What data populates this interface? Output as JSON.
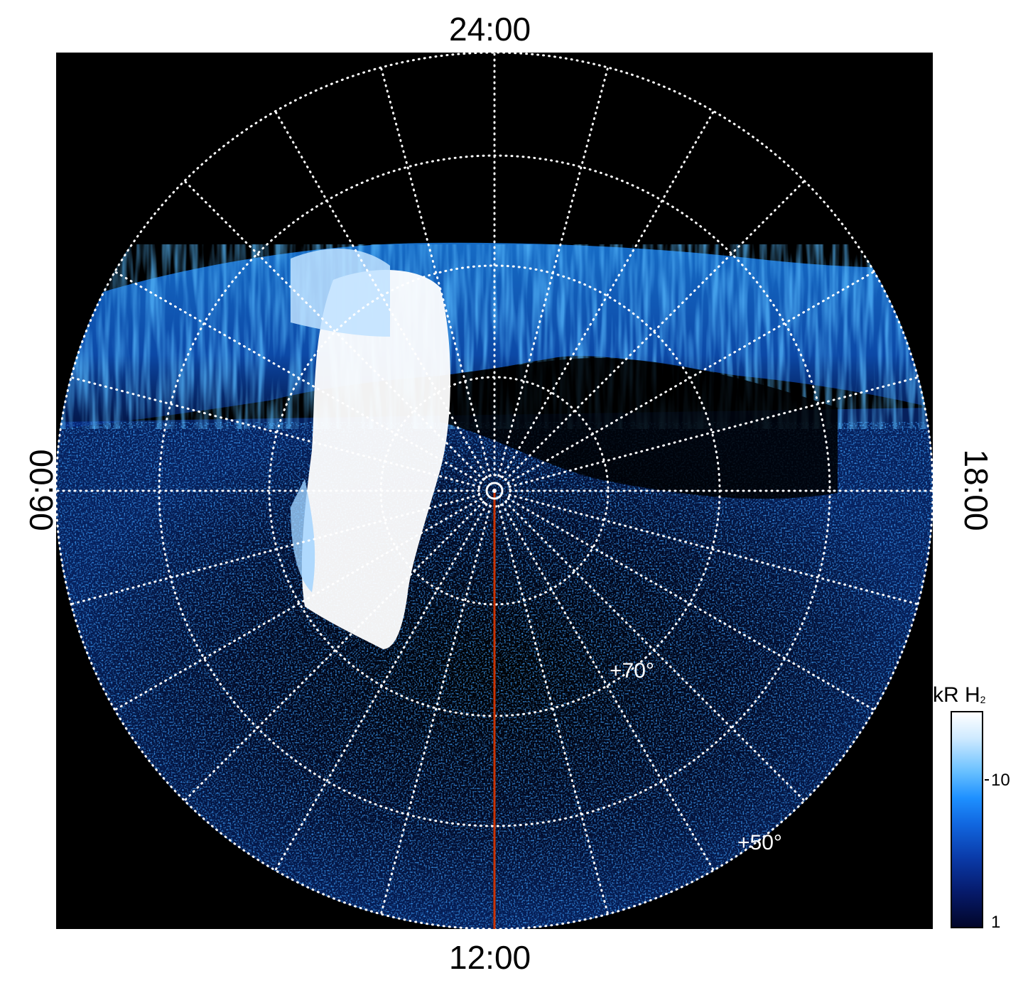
{
  "labels": {
    "top": "24:00",
    "bottom": "12:00",
    "left": "06:00",
    "right": "18:00"
  },
  "latitude_labels": {
    "lat70": "+70°",
    "lat50": "+50°"
  },
  "colorbar": {
    "title": "kR H",
    "title_sub": "2",
    "ticks": [
      "10",
      "1"
    ]
  },
  "colors": {
    "background": "#000000",
    "grid": "#ffffff",
    "meridian_line": "#cc3300",
    "emission_bright": "#ffffff",
    "emission_mid": "#1e90ff",
    "emission_dim": "#0a2a8a"
  }
}
